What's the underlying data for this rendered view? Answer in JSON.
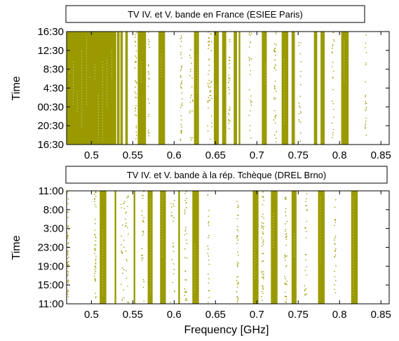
{
  "colors": {
    "signal": "#9a9a00"
  },
  "chart_data": [
    {
      "type": "heatmap",
      "title": "TV IV. et V. bande en France (ESIEE Paris)",
      "xlabel": "",
      "ylabel": "Time",
      "xlim": [
        0.47,
        0.86
      ],
      "x_ticks": [
        0.5,
        0.55,
        0.6,
        0.65,
        0.7,
        0.75,
        0.8,
        0.85
      ],
      "x_tick_labels": [
        "0.5",
        "0.55",
        "0.6",
        "0.65",
        "0.7",
        "0.75",
        "0.8",
        "0.85"
      ],
      "y_tick_labels": [
        "16:30",
        "12:30",
        "8:30",
        "4:30",
        "00:30",
        "20:30",
        "16:30"
      ],
      "occupied_bands_ghz": [
        [
          0.47,
          0.53
        ],
        [
          0.531,
          0.534
        ],
        [
          0.535,
          0.538
        ],
        [
          0.541,
          0.544
        ],
        [
          0.556,
          0.566
        ],
        [
          0.581,
          0.589
        ],
        [
          0.624,
          0.63
        ],
        [
          0.648,
          0.654
        ],
        [
          0.658,
          0.663
        ],
        [
          0.672,
          0.676
        ],
        [
          0.678,
          0.68
        ],
        [
          0.706,
          0.712
        ],
        [
          0.73,
          0.738
        ],
        [
          0.742,
          0.746
        ],
        [
          0.769,
          0.773
        ],
        [
          0.777,
          0.782
        ],
        [
          0.802,
          0.811
        ]
      ],
      "sparse_bands_ghz": [
        [
          0.552,
          0.554
        ],
        [
          0.568,
          0.57
        ],
        [
          0.607,
          0.609
        ],
        [
          0.618,
          0.622
        ],
        [
          0.64,
          0.645
        ],
        [
          0.665,
          0.667
        ],
        [
          0.69,
          0.693
        ],
        [
          0.72,
          0.723
        ],
        [
          0.75,
          0.753
        ],
        [
          0.79,
          0.793
        ],
        [
          0.83,
          0.832
        ]
      ]
    },
    {
      "type": "heatmap",
      "title": "TV IV. et V. bande à la rép. Tchèque (DREL Brno)",
      "xlabel": "Frequency [GHz]",
      "ylabel": "Time",
      "xlim": [
        0.47,
        0.86
      ],
      "x_ticks": [
        0.5,
        0.55,
        0.6,
        0.65,
        0.7,
        0.75,
        0.8,
        0.85
      ],
      "x_tick_labels": [
        "0.5",
        "0.55",
        "0.6",
        "0.65",
        "0.7",
        "0.75",
        "0.8",
        "0.85"
      ],
      "y_tick_labels": [
        "11:00",
        "8:00",
        "3:00",
        "23:00",
        "19:00",
        "15:00",
        "11:00"
      ],
      "occupied_bands_ghz": [
        [
          0.51,
          0.518
        ],
        [
          0.528,
          0.53
        ],
        [
          0.551,
          0.553
        ],
        [
          0.568,
          0.574
        ],
        [
          0.583,
          0.59
        ],
        [
          0.605,
          0.607
        ],
        [
          0.622,
          0.63
        ],
        [
          0.695,
          0.702
        ],
        [
          0.717,
          0.725
        ],
        [
          0.742,
          0.748
        ],
        [
          0.774,
          0.782
        ],
        [
          0.814,
          0.822
        ]
      ],
      "sparse_bands_ghz": [
        [
          0.503,
          0.505
        ],
        [
          0.535,
          0.545
        ],
        [
          0.56,
          0.563
        ],
        [
          0.595,
          0.6
        ],
        [
          0.612,
          0.615
        ],
        [
          0.64,
          0.642
        ],
        [
          0.675,
          0.677
        ],
        [
          0.705,
          0.708
        ],
        [
          0.733,
          0.736
        ],
        [
          0.757,
          0.76
        ],
        [
          0.793,
          0.795
        ],
        [
          0.47,
          0.472
        ]
      ]
    }
  ]
}
